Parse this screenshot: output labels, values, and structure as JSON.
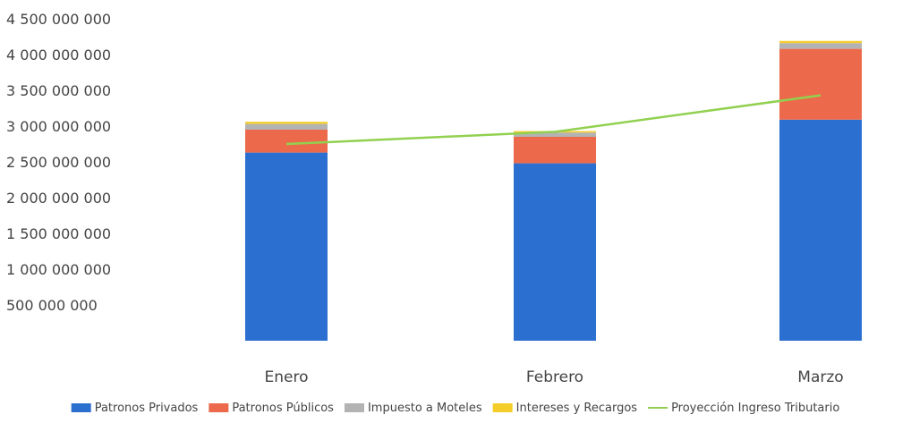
{
  "chart_data": {
    "type": "bar",
    "stacked": true,
    "categories": [
      "Enero",
      "Febrero",
      "Marzo"
    ],
    "series": [
      {
        "name": "Patronos Privados",
        "values": [
          2630000000,
          2480000000,
          3090000000
        ],
        "color": "#2b6fd1"
      },
      {
        "name": "Patronos Públicos",
        "values": [
          320000000,
          370000000,
          990000000
        ],
        "color": "#ec6a4b"
      },
      {
        "name": "Impuesto a Moteles",
        "values": [
          80000000,
          60000000,
          80000000
        ],
        "color": "#b3b3b3"
      },
      {
        "name": "Intereses y Recargos",
        "values": [
          30000000,
          20000000,
          30000000
        ],
        "color": "#f5cd2b"
      }
    ],
    "line_series": {
      "name": "Proyección Ingreso Tributario",
      "values": [
        2750000000,
        2920000000,
        3430000000
      ],
      "color": "#92d050"
    },
    "ylim": [
      0,
      4500000000
    ],
    "yticks": [
      0,
      500000000,
      1000000000,
      1500000000,
      2000000000,
      2500000000,
      3000000000,
      3500000000,
      4000000000,
      4500000000
    ],
    "ytick_labels": [
      "",
      "500 000 000",
      "1 000 000 000",
      "1 500 000 000",
      "2 000 000 000",
      "2 500 000 000",
      "3 000 000 000",
      "3 500 000 000",
      "4 000 000 000",
      "4 500 000 000"
    ],
    "grid": false,
    "legend_position": "bottom"
  }
}
